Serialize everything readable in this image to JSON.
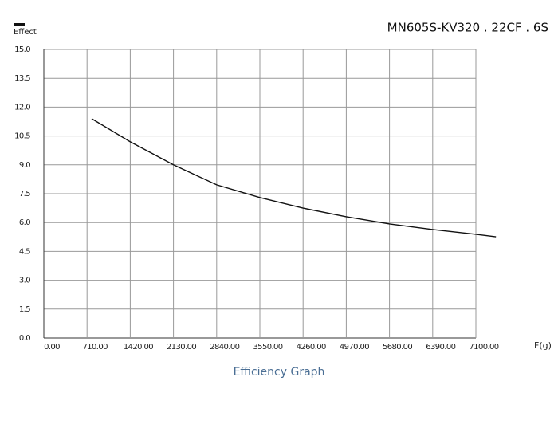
{
  "chart_data": {
    "type": "line",
    "title": "MN605S-KV320 . 22CF . 6S",
    "caption": "Efficiency Graph",
    "x_label": "F(g)",
    "y_label": "Effect",
    "x": [
      786,
      1420,
      2130,
      2840,
      3550,
      4260,
      4970,
      5680,
      6390,
      7100,
      7430
    ],
    "series": [
      {
        "name": "Effect",
        "color": "#111111",
        "values": [
          11.4,
          10.2,
          9.0,
          7.96,
          7.3,
          6.75,
          6.3,
          5.93,
          5.64,
          5.39,
          5.26
        ]
      }
    ],
    "xlim": [
      0,
      7100
    ],
    "ylim": [
      0,
      15
    ],
    "xticks": [
      {
        "value": 0,
        "label": "0.00"
      },
      {
        "value": 710,
        "label": "710.00"
      },
      {
        "value": 1420,
        "label": "1420.00"
      },
      {
        "value": 2130,
        "label": "2130.00"
      },
      {
        "value": 2840,
        "label": "2840.00"
      },
      {
        "value": 3550,
        "label": "3550.00"
      },
      {
        "value": 4260,
        "label": "4260.00"
      },
      {
        "value": 4970,
        "label": "4970.00"
      },
      {
        "value": 5680,
        "label": "5680.00"
      },
      {
        "value": 6390,
        "label": "6390.00"
      },
      {
        "value": 7100,
        "label": "7100.00"
      }
    ],
    "yticks": [
      {
        "value": 0,
        "label": "0.0"
      },
      {
        "value": 1.5,
        "label": "1.5"
      },
      {
        "value": 3,
        "label": "3.0"
      },
      {
        "value": 4.5,
        "label": "4.5"
      },
      {
        "value": 6,
        "label": "6.0"
      },
      {
        "value": 7.5,
        "label": "7.5"
      },
      {
        "value": 9,
        "label": "9.0"
      },
      {
        "value": 10.5,
        "label": "10.5"
      },
      {
        "value": 12,
        "label": "12.0"
      },
      {
        "value": 13.5,
        "label": "13.5"
      },
      {
        "value": 15,
        "label": "15.0"
      }
    ],
    "grid": true
  }
}
